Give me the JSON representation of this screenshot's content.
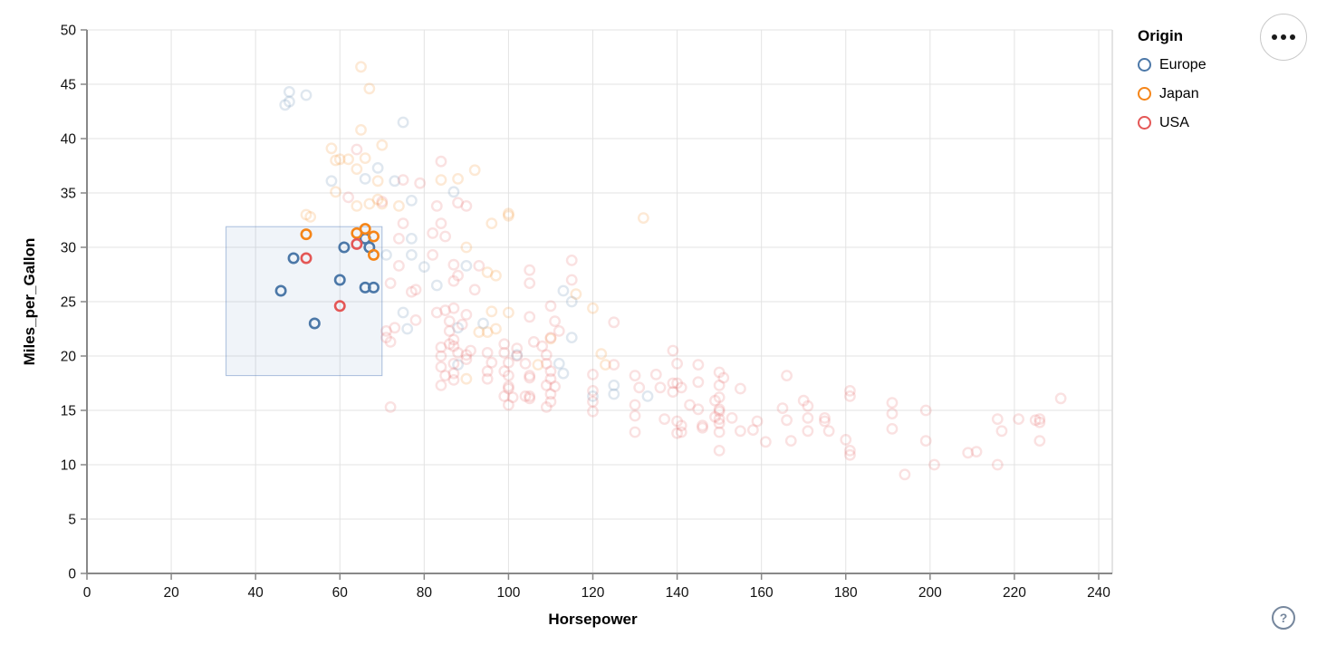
{
  "ui": {
    "menu_icon": "ellipsis-icon",
    "help_glyph": "?"
  },
  "chart_data": {
    "type": "scatter",
    "title": "",
    "xlabel": "Horsepower",
    "ylabel": "Miles_per_Gallon",
    "xlim": [
      0,
      240
    ],
    "ylim": [
      0,
      50
    ],
    "x_ticks": [
      0,
      20,
      40,
      60,
      80,
      100,
      120,
      140,
      160,
      180,
      200,
      220,
      240
    ],
    "y_ticks": [
      0,
      5,
      10,
      15,
      20,
      25,
      30,
      35,
      40,
      45,
      50
    ],
    "grid": true,
    "legend": {
      "title": "Origin",
      "position": "top-right",
      "items": [
        {
          "label": "Europe",
          "color": "#4c78a8"
        },
        {
          "label": "Japan",
          "color": "#f58518"
        },
        {
          "label": "USA",
          "color": "#e45756"
        }
      ]
    },
    "brush": {
      "x": [
        33,
        70
      ],
      "y": [
        18.2,
        31.9
      ],
      "fill": "rgba(90,130,190,0.09)",
      "stroke": "rgba(90,130,190,0.5)"
    },
    "unselected_opacity": 0.18,
    "series": [
      {
        "name": "Europe",
        "color": "#4c78a8",
        "selected": [
          [
            46,
            26
          ],
          [
            49,
            29
          ],
          [
            54,
            23
          ],
          [
            60,
            27
          ],
          [
            61,
            30
          ],
          [
            66,
            30.8
          ],
          [
            67,
            30
          ],
          [
            66,
            26.3
          ],
          [
            68,
            26.3
          ]
        ],
        "unselected": [
          [
            48,
            44.3
          ],
          [
            52,
            44
          ],
          [
            48,
            43.4
          ],
          [
            47,
            43.1
          ],
          [
            75,
            41.5
          ],
          [
            69,
            37.3
          ],
          [
            58,
            36.1
          ],
          [
            66,
            36.3
          ],
          [
            73,
            36.1
          ],
          [
            77,
            34.3
          ],
          [
            87,
            35.1
          ],
          [
            77,
            30.8
          ],
          [
            71,
            29.3
          ],
          [
            77,
            29.3
          ],
          [
            80,
            28.2
          ],
          [
            90,
            28.3
          ],
          [
            83,
            26.5
          ],
          [
            75,
            24
          ],
          [
            76,
            22.5
          ],
          [
            94,
            23
          ],
          [
            88,
            22.6
          ],
          [
            88,
            19.2
          ],
          [
            102,
            20.1
          ],
          [
            113,
            26
          ],
          [
            115,
            25
          ],
          [
            115,
            21.7
          ],
          [
            112,
            19.3
          ],
          [
            113,
            18.4
          ],
          [
            120,
            16.3
          ],
          [
            125,
            16.5
          ],
          [
            133,
            16.3
          ],
          [
            125,
            17.3
          ]
        ]
      },
      {
        "name": "Japan",
        "color": "#f58518",
        "selected": [
          [
            52,
            31.2
          ],
          [
            64,
            31.3
          ],
          [
            66,
            31.7
          ],
          [
            68,
            31
          ],
          [
            68,
            29.3
          ]
        ],
        "unselected": [
          [
            65,
            46.6
          ],
          [
            67,
            44.6
          ],
          [
            65,
            40.8
          ],
          [
            58,
            39.1
          ],
          [
            70,
            39.4
          ],
          [
            59,
            38
          ],
          [
            60,
            38.1
          ],
          [
            62,
            38.1
          ],
          [
            66,
            38.2
          ],
          [
            64,
            37.2
          ],
          [
            69,
            36.1
          ],
          [
            92,
            37.1
          ],
          [
            84,
            36.2
          ],
          [
            88,
            36.3
          ],
          [
            59,
            35.1
          ],
          [
            64,
            33.8
          ],
          [
            67,
            34
          ],
          [
            69,
            34.4
          ],
          [
            74,
            33.8
          ],
          [
            70,
            34
          ],
          [
            52,
            33
          ],
          [
            53,
            32.8
          ],
          [
            96,
            32.2
          ],
          [
            100,
            32.9
          ],
          [
            100,
            33.1
          ],
          [
            90,
            30
          ],
          [
            95,
            27.7
          ],
          [
            97,
            27.4
          ],
          [
            97,
            22.5
          ],
          [
            96,
            24.1
          ],
          [
            100,
            24
          ],
          [
            93,
            22.2
          ],
          [
            95,
            22.2
          ],
          [
            107,
            19.2
          ],
          [
            110,
            21.6
          ],
          [
            116,
            25.7
          ],
          [
            120,
            24.4
          ],
          [
            122,
            20.2
          ],
          [
            123,
            19.2
          ],
          [
            132,
            32.7
          ],
          [
            90,
            17.9
          ]
        ]
      },
      {
        "name": "USA",
        "color": "#e45756",
        "selected": [
          [
            52,
            29
          ],
          [
            64,
            30.3
          ],
          [
            60,
            24.6
          ]
        ],
        "unselected": [
          [
            64,
            39
          ],
          [
            84,
            37.9
          ],
          [
            62,
            34.6
          ],
          [
            79,
            35.9
          ],
          [
            75,
            36.2
          ],
          [
            83,
            33.8
          ],
          [
            88,
            34.1
          ],
          [
            90,
            33.8
          ],
          [
            84,
            32.2
          ],
          [
            75,
            32.2
          ],
          [
            70,
            34.2
          ],
          [
            74,
            30.8
          ],
          [
            82,
            31.3
          ],
          [
            85,
            31
          ],
          [
            82,
            29.3
          ],
          [
            74,
            28.3
          ],
          [
            87,
            28.4
          ],
          [
            93,
            28.3
          ],
          [
            88,
            27.4
          ],
          [
            87,
            26.9
          ],
          [
            92,
            26.1
          ],
          [
            78,
            26.1
          ],
          [
            77,
            25.9
          ],
          [
            72,
            26.7
          ],
          [
            105,
            27.9
          ],
          [
            105,
            26.7
          ],
          [
            115,
            28.8
          ],
          [
            115,
            27
          ],
          [
            78,
            23.3
          ],
          [
            71,
            22.3
          ],
          [
            73,
            22.6
          ],
          [
            71,
            21.7
          ],
          [
            72,
            21.3
          ],
          [
            83,
            24
          ],
          [
            85,
            24.2
          ],
          [
            87,
            24.4
          ],
          [
            90,
            23.8
          ],
          [
            86,
            23.2
          ],
          [
            86,
            22.3
          ],
          [
            87,
            21.5
          ],
          [
            89,
            22.9
          ],
          [
            105,
            23.6
          ],
          [
            110,
            24.6
          ],
          [
            111,
            23.2
          ],
          [
            106,
            21.3
          ],
          [
            110,
            21.7
          ],
          [
            84,
            20.8
          ],
          [
            84,
            20
          ],
          [
            87,
            20.9
          ],
          [
            86,
            21.1
          ],
          [
            88,
            20.3
          ],
          [
            90,
            20.1
          ],
          [
            91,
            20.5
          ],
          [
            90,
            19.7
          ],
          [
            87,
            19.3
          ],
          [
            87,
            18.4
          ],
          [
            87,
            17.8
          ],
          [
            84,
            19
          ],
          [
            85,
            18.2
          ],
          [
            84,
            17.3
          ],
          [
            95,
            20.3
          ],
          [
            96,
            19.4
          ],
          [
            95,
            18.6
          ],
          [
            95,
            17.9
          ],
          [
            99,
            21.1
          ],
          [
            99,
            20.3
          ],
          [
            100,
            19.4
          ],
          [
            99,
            18.6
          ],
          [
            100,
            17.2
          ],
          [
            102,
            20.7
          ],
          [
            102,
            20
          ],
          [
            104,
            19.3
          ],
          [
            105,
            18
          ],
          [
            104,
            16.3
          ],
          [
            105,
            16.1
          ],
          [
            108,
            20.9
          ],
          [
            109,
            20.1
          ],
          [
            109,
            19.3
          ],
          [
            110,
            18.6
          ],
          [
            110,
            17.9
          ],
          [
            111,
            17.2
          ],
          [
            99,
            16.3
          ],
          [
            100,
            15.5
          ],
          [
            105,
            16.3
          ],
          [
            72,
            15.3
          ],
          [
            109,
            17.3
          ],
          [
            110,
            16.5
          ],
          [
            110,
            15.8
          ],
          [
            105,
            18.2
          ],
          [
            100,
            18.2
          ],
          [
            100,
            17
          ],
          [
            101,
            16.2
          ],
          [
            109,
            15.3
          ],
          [
            120,
            14.9
          ],
          [
            130,
            14.5
          ],
          [
            120,
            18.3
          ],
          [
            125,
            19.2
          ],
          [
            125,
            23.1
          ],
          [
            112,
            22.3
          ],
          [
            120,
            15.8
          ],
          [
            120,
            16.8
          ],
          [
            139,
            20.5
          ],
          [
            140,
            19.3
          ],
          [
            145,
            19.2
          ],
          [
            135,
            18.3
          ],
          [
            130,
            18.2
          ],
          [
            131,
            17.1
          ],
          [
            150,
            18.5
          ],
          [
            151,
            18
          ],
          [
            139,
            17.5
          ],
          [
            140,
            17.5
          ],
          [
            139,
            16.7
          ],
          [
            141,
            17.1
          ],
          [
            145,
            17.6
          ],
          [
            150,
            17.3
          ],
          [
            155,
            17
          ],
          [
            130,
            15.5
          ],
          [
            130,
            13
          ],
          [
            143,
            15.5
          ],
          [
            145,
            15.1
          ],
          [
            146,
            13.4
          ],
          [
            150,
            16.2
          ],
          [
            150,
            15.1
          ],
          [
            150,
            14.2
          ],
          [
            150,
            13
          ],
          [
            149,
            15.9
          ],
          [
            149,
            14.4
          ],
          [
            153,
            14.3
          ],
          [
            155,
            13.1
          ],
          [
            137,
            14.2
          ],
          [
            140,
            14
          ],
          [
            141,
            13
          ],
          [
            159,
            14
          ],
          [
            161,
            12.1
          ],
          [
            158,
            13.2
          ],
          [
            166,
            18.2
          ],
          [
            165,
            15.2
          ],
          [
            166,
            14.1
          ],
          [
            167,
            12.2
          ],
          [
            170,
            15.9
          ],
          [
            171,
            15.4
          ],
          [
            171,
            14.3
          ],
          [
            171,
            13.1
          ],
          [
            175,
            14.3
          ],
          [
            176,
            13.1
          ],
          [
            181,
            16.8
          ],
          [
            181,
            16.3
          ],
          [
            180,
            12.3
          ],
          [
            181,
            11.3
          ],
          [
            150,
            11.3
          ],
          [
            136,
            17.1
          ],
          [
            141,
            13.6
          ],
          [
            140,
            12.9
          ],
          [
            146,
            13.6
          ],
          [
            181,
            10.9
          ],
          [
            175,
            14
          ],
          [
            191,
            15.7
          ],
          [
            191,
            14.7
          ],
          [
            191,
            13.3
          ],
          [
            199,
            15
          ],
          [
            199,
            12.2
          ],
          [
            201,
            10
          ],
          [
            194,
            9.1
          ],
          [
            209,
            11.1
          ],
          [
            211,
            11.2
          ],
          [
            216,
            14.2
          ],
          [
            217,
            13.1
          ],
          [
            216,
            10
          ],
          [
            221,
            14.2
          ],
          [
            226,
            14.2
          ],
          [
            225,
            14.1
          ],
          [
            226,
            13.9
          ],
          [
            226,
            12.2
          ],
          [
            231,
            16.1
          ],
          [
            150,
            14.9
          ],
          [
            150,
            13.8
          ]
        ]
      }
    ]
  }
}
